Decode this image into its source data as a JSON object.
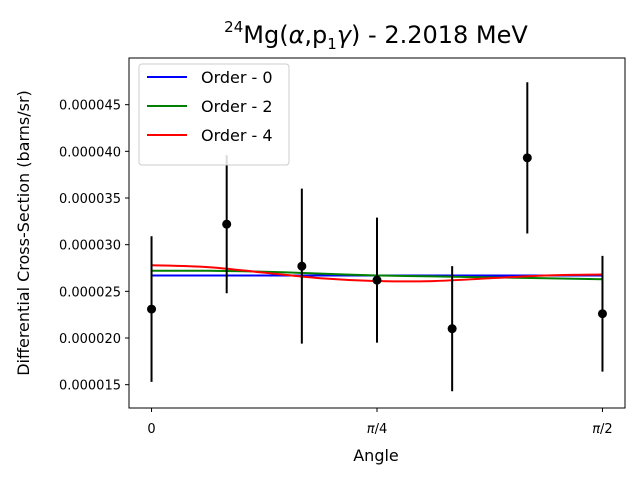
{
  "chart_data": {
    "type": "scatter",
    "title": {
      "superscript": "24",
      "element": "Mg(",
      "alpha": "α",
      "comma": ",p",
      "subscript": "1",
      "gamma": "γ",
      "rest": ") - 2.2018 MeV"
    },
    "xlabel": "Angle",
    "ylabel": "Differential Cross-Section (barns/sr)",
    "xlim": [
      -0.0785,
      1.6493
    ],
    "ylim": [
      1.25e-05,
      5e-05
    ],
    "x_ticks": [
      {
        "value": 0,
        "label": "0"
      },
      {
        "value": 0.7854,
        "label": "π/4"
      },
      {
        "value": 1.5708,
        "label": "π/2"
      }
    ],
    "y_ticks": [
      {
        "value": 1.5e-05,
        "label": "0.000015"
      },
      {
        "value": 2e-05,
        "label": "0.000020"
      },
      {
        "value": 2.5e-05,
        "label": "0.000025"
      },
      {
        "value": 3e-05,
        "label": "0.000030"
      },
      {
        "value": 3.5e-05,
        "label": "0.000035"
      },
      {
        "value": 4e-05,
        "label": "0.000040"
      },
      {
        "value": 4.5e-05,
        "label": "0.000045"
      }
    ],
    "points": [
      {
        "x": 0.0,
        "y": 2.31e-05,
        "err": 7.8e-06
      },
      {
        "x": 0.2618,
        "y": 3.22e-05,
        "err": 7.4e-06
      },
      {
        "x": 0.5236,
        "y": 2.77e-05,
        "err": 8.3e-06
      },
      {
        "x": 0.7854,
        "y": 2.62e-05,
        "err": 6.7e-06
      },
      {
        "x": 1.0472,
        "y": 2.1e-05,
        "err": 6.7e-06
      },
      {
        "x": 1.309,
        "y": 3.93e-05,
        "err": 8.1e-06
      },
      {
        "x": 1.5708,
        "y": 2.26e-05,
        "err": 6.2e-06
      }
    ],
    "series": [
      {
        "name": "Order - 0",
        "color": "#0000ff",
        "x": [
          0,
          0.1963,
          0.3927,
          0.589,
          0.7854,
          0.9817,
          1.1781,
          1.3744,
          1.5708
        ],
        "y": [
          2.67e-05,
          2.67e-05,
          2.67e-05,
          2.67e-05,
          2.67e-05,
          2.67e-05,
          2.67e-05,
          2.67e-05,
          2.67e-05
        ]
      },
      {
        "name": "Order - 2",
        "color": "#008000",
        "x": [
          0,
          0.1963,
          0.3927,
          0.589,
          0.7854,
          0.9817,
          1.1781,
          1.3744,
          1.5708
        ],
        "y": [
          2.72e-05,
          2.72e-05,
          2.71e-05,
          2.69e-05,
          2.67e-05,
          2.66e-05,
          2.65e-05,
          2.64e-05,
          2.63e-05
        ]
      },
      {
        "name": "Order - 4",
        "color": "#ff0000",
        "x": [
          0,
          0.1963,
          0.3927,
          0.589,
          0.7854,
          0.9817,
          1.1781,
          1.3744,
          1.5708
        ],
        "y": [
          2.78e-05,
          2.76e-05,
          2.7e-05,
          2.64e-05,
          2.61e-05,
          2.61e-05,
          2.64e-05,
          2.67e-05,
          2.68e-05
        ]
      }
    ],
    "legend_placement": "top-left",
    "grid": false
  }
}
